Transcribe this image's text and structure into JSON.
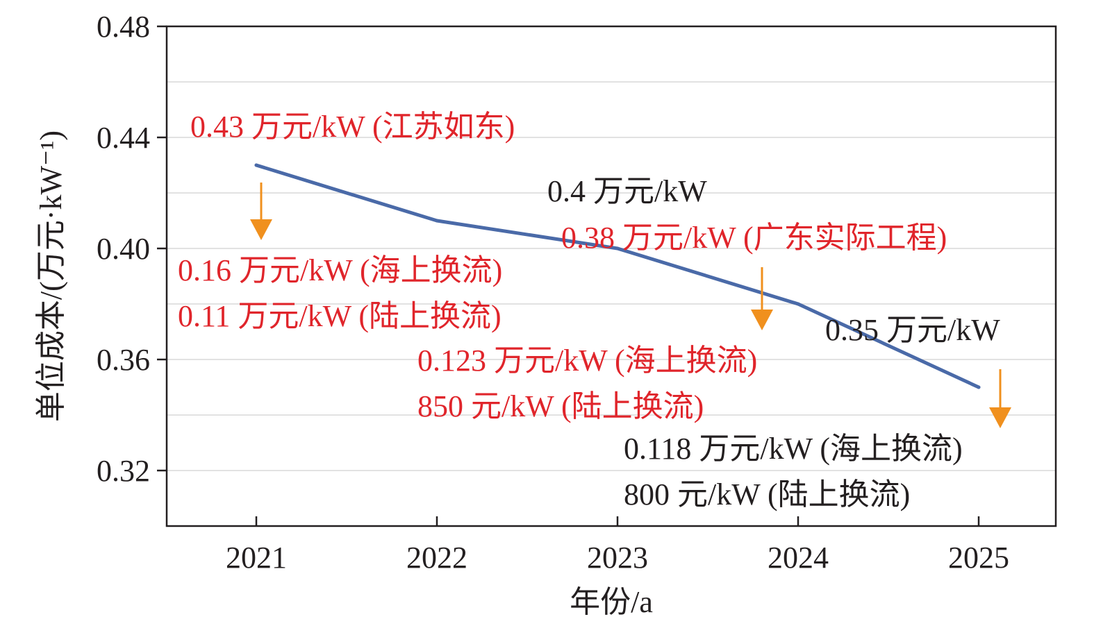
{
  "chart_data": {
    "type": "line",
    "xlabel": "年份/a",
    "ylabel": "单位成本/(万元·kW⁻¹)",
    "x": [
      2021,
      2022,
      2023,
      2024,
      2025
    ],
    "x_tick_labels": [
      "2021",
      "2022",
      "2023",
      "2024",
      "2025"
    ],
    "series": [
      {
        "values": [
          0.43,
          0.41,
          0.4,
          0.38,
          0.35
        ]
      }
    ],
    "ylim": [
      0.3,
      0.48
    ],
    "y_ticks": [
      0.32,
      0.36,
      0.4,
      0.44,
      0.48
    ],
    "y_tick_labels": [
      "0.32",
      "0.36",
      "0.40",
      "0.44",
      "0.48"
    ],
    "grid": {
      "horizontal": true,
      "vertical": false
    },
    "colors": {
      "line": "#4a6aa8",
      "arrow": "#f0901e",
      "annotation_red": "#e0252b",
      "annotation_dark": "#231f20",
      "grid": "#d9d9d9"
    },
    "annotations": [
      {
        "text": "0.43 万元/kW (江苏如东)",
        "color": "red"
      },
      {
        "text": "0.16 万元/kW (海上换流)",
        "color": "red"
      },
      {
        "text": "0.11 万元/kW (陆上换流)",
        "color": "red"
      },
      {
        "text": "0.4 万元/kW",
        "color": "dark"
      },
      {
        "text": "0.38 万元/kW (广东实际工程)",
        "color": "red"
      },
      {
        "text": "0.123 万元/kW (海上换流)",
        "color": "red"
      },
      {
        "text": "850 元/kW (陆上换流)",
        "color": "red"
      },
      {
        "text": "0.35 万元/kW",
        "color": "dark"
      },
      {
        "text": "0.118 万元/kW (海上换流)",
        "color": "dark"
      },
      {
        "text": "800 元/kW (陆上换流)",
        "color": "dark"
      }
    ]
  }
}
